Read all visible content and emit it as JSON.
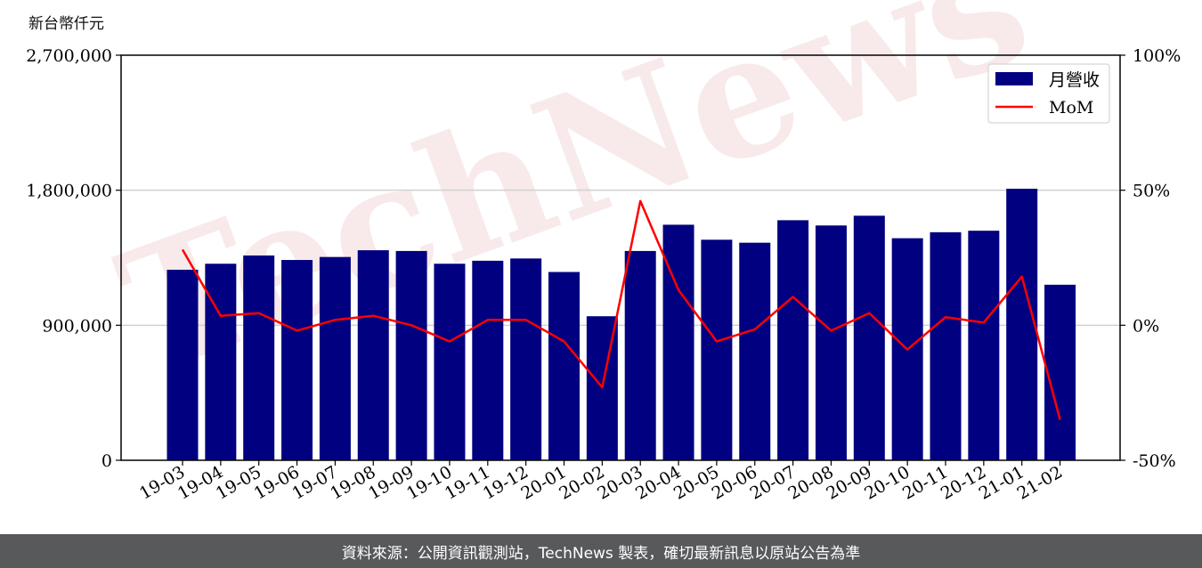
{
  "chart_data": {
    "type": "bar",
    "categories": [
      "19-03",
      "19-04",
      "19-05",
      "19-06",
      "19-07",
      "19-08",
      "19-09",
      "19-10",
      "19-11",
      "19-12",
      "20-01",
      "20-02",
      "20-03",
      "20-04",
      "20-05",
      "20-06",
      "20-07",
      "20-08",
      "20-09",
      "20-10",
      "20-11",
      "20-12",
      "21-01",
      "21-02"
    ],
    "series": [
      {
        "name": "月營收",
        "kind": "bar",
        "axis": "left",
        "color": "#000080",
        "values": [
          1270000,
          1310000,
          1365000,
          1335000,
          1355000,
          1400000,
          1395000,
          1310000,
          1330000,
          1345000,
          1255000,
          960000,
          1395000,
          1570000,
          1470000,
          1450000,
          1600000,
          1565000,
          1630000,
          1480000,
          1520000,
          1530000,
          1810000,
          1170000
        ]
      },
      {
        "name": "MoM",
        "kind": "line",
        "axis": "right",
        "color": "#ff0000",
        "values": [
          28,
          3.5,
          4.5,
          -2,
          2,
          3.5,
          0,
          -6,
          2,
          2,
          -6,
          -23,
          46,
          13,
          -6,
          -1.5,
          10.5,
          -2,
          4.5,
          -9,
          3,
          1,
          18,
          -35
        ]
      }
    ],
    "ylabel": "新台幣仟元",
    "ylim": [
      0,
      2700000
    ],
    "yticks": [
      "2,700,000",
      "1,800,000",
      "900,000",
      "0"
    ],
    "ylim_right": [
      -50,
      100
    ],
    "yticks_right": [
      "100%",
      "50%",
      "0%",
      "-50%"
    ],
    "grid": "horizontal",
    "legend_position": "top-right"
  },
  "watermark": {
    "text": "TechNews",
    "color": "#f2d9d9"
  },
  "footer": {
    "text": "資料來源：公開資訊觀測站，TechNews 製表，確切最新訊息以原站公告為準"
  }
}
